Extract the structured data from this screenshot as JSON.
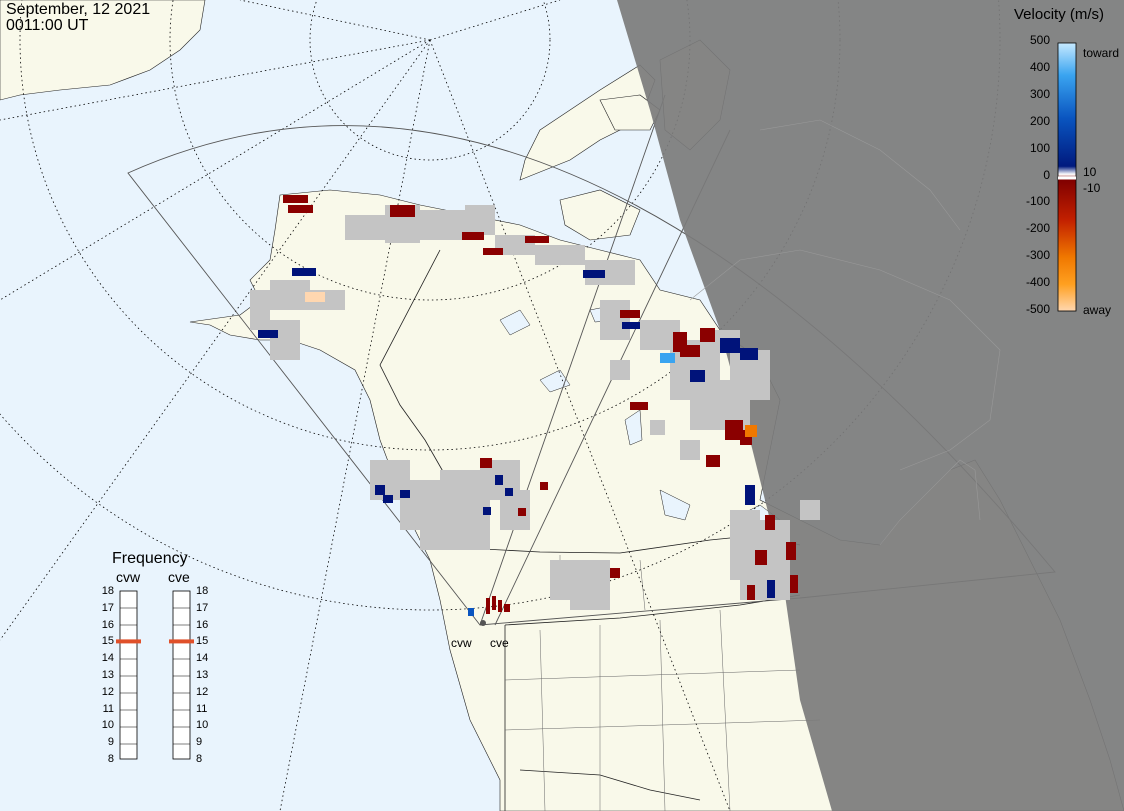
{
  "header": {
    "date": "September, 12 2021",
    "time": "0011:00 UT"
  },
  "velocity_legend": {
    "title": "Velocity (m/s)",
    "ticks": [
      "500",
      "400",
      "300",
      "200",
      "100",
      "0",
      "-100",
      "-200",
      "-300",
      "-400",
      "-500"
    ],
    "toward_label": "toward",
    "away_label": "away",
    "inner_pos": "10",
    "inner_neg": "-10",
    "toward_color": "#c6e9ff",
    "away_color": "#ffd7b0"
  },
  "frequency_panel": {
    "title": "Frequency",
    "radars": [
      {
        "name": "cvw",
        "frequency": 15
      },
      {
        "name": "cve",
        "frequency": 15
      }
    ],
    "ticks": [
      "18",
      "17",
      "16",
      "15",
      "14",
      "13",
      "12",
      "11",
      "10",
      "9",
      "8"
    ],
    "marker_color": "#e0502a"
  },
  "map": {
    "site_labels": [
      "cvw",
      "cve"
    ],
    "land_color": "#f9f9ea",
    "ocean_color": "#e9f4fd",
    "night_color": "#7f7f7f"
  }
}
